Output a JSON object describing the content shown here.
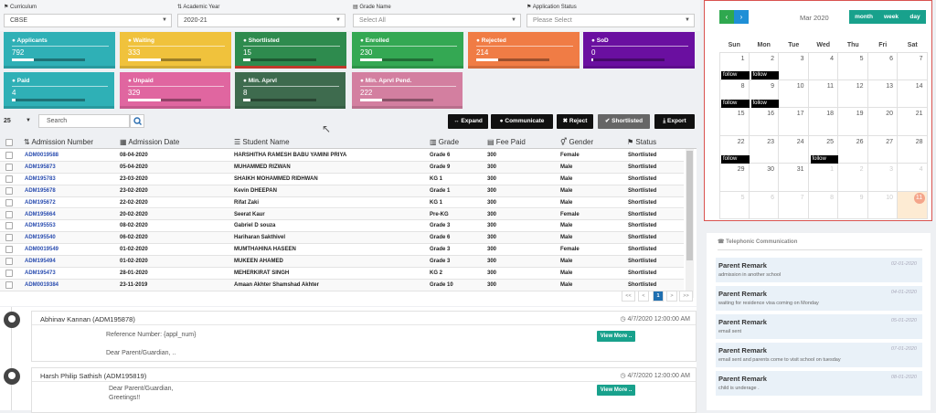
{
  "filters": [
    {
      "label": "Curriculum",
      "value": "CBSE",
      "placeholder": false
    },
    {
      "label": "Academic Year",
      "value": "2020-21",
      "placeholder": false
    },
    {
      "label": "Grade Name",
      "value": "Select All",
      "placeholder": true
    },
    {
      "label": "Application Status",
      "value": "Please Select",
      "placeholder": true
    }
  ],
  "tiles": [
    {
      "label": "Applicants",
      "value": "792",
      "color": "#2fb0b6",
      "progress": 0.3
    },
    {
      "label": "Waiting",
      "value": "333",
      "color": "#f0c23c",
      "progress": 0.45
    },
    {
      "label": "Shortlisted",
      "value": "15",
      "color": "#2e8b4e",
      "progress": 0.1
    },
    {
      "label": "Enrolled",
      "value": "230",
      "color": "#34a853",
      "progress": 0.3
    },
    {
      "label": "Rejected",
      "value": "214",
      "color": "#f07c45",
      "progress": 0.3
    },
    {
      "label": "SoD",
      "value": "0",
      "color": "#6a0fa0",
      "progress": 0.0
    },
    {
      "label": "Paid",
      "value": "4",
      "color": "#2fb0b6",
      "progress": 0.05
    },
    {
      "label": "Unpaid",
      "value": "329",
      "color": "#e066a0",
      "progress": 0.45
    },
    {
      "label": "Min. Aprvl",
      "value": "8",
      "color": "#3e6b4e",
      "progress": 0.1
    },
    {
      "label": "Min. Aprvl Pend.",
      "value": "222",
      "color": "#d37fa0",
      "progress": 0.3
    }
  ],
  "toolbar": {
    "page_size": "25",
    "search_placeholder": "Search",
    "expand": "Expand",
    "communicate": "Communicate",
    "reject": "Reject",
    "shortlisted": "Shortlisted",
    "export": "Export"
  },
  "table": {
    "headers": [
      "Admission Number",
      "Admission Date",
      "Student Name",
      "Grade",
      "Fee Paid",
      "Gender",
      "Status"
    ],
    "rows": [
      [
        "ADM0019588",
        "08-04-2020",
        "HARSHITHA RAMESH BABU YAMINI PRIYA",
        "Grade 6",
        "300",
        "Female",
        "Shortlisted"
      ],
      [
        "ADM195873",
        "05-04-2020",
        "MUHAMMED RIZWAN",
        "Grade 9",
        "300",
        "Male",
        "Shortlisted"
      ],
      [
        "ADM195783",
        "23-03-2020",
        "SHAIKH MOHAMMED RIDHWAN",
        "KG 1",
        "300",
        "Male",
        "Shortlisted"
      ],
      [
        "ADM195678",
        "23-02-2020",
        "Kevin DHEEPAN",
        "Grade 1",
        "300",
        "Male",
        "Shortlisted"
      ],
      [
        "ADM195672",
        "22-02-2020",
        "Rifat Zaki",
        "KG 1",
        "300",
        "Male",
        "Shortlisted"
      ],
      [
        "ADM195664",
        "20-02-2020",
        "Seerat Kaur",
        "Pre-KG",
        "300",
        "Female",
        "Shortlisted"
      ],
      [
        "ADM195553",
        "08-02-2020",
        "Gabriel D souza",
        "Grade 3",
        "300",
        "Male",
        "Shortlisted"
      ],
      [
        "ADM195540",
        "06-02-2020",
        "Hariharan Sakthivel",
        "Grade 6",
        "300",
        "Male",
        "Shortlisted"
      ],
      [
        "ADM0019549",
        "01-02-2020",
        "MUMTHAHINA HASEEN",
        "Grade 3",
        "300",
        "Female",
        "Shortlisted"
      ],
      [
        "ADM195494",
        "01-02-2020",
        "MUKEEN AHAMED",
        "Grade 3",
        "300",
        "Male",
        "Shortlisted"
      ],
      [
        "ADM195473",
        "28-01-2020",
        "MEHERKIRAT SINGH",
        "KG 2",
        "300",
        "Male",
        "Shortlisted"
      ],
      [
        "ADM0019384",
        "23-11-2019",
        "Amaan Akhter Shamshad Akhter",
        "Grade 10",
        "300",
        "Male",
        "Shortlisted"
      ]
    ],
    "pagination": [
      "<<",
      "<",
      "1",
      ">",
      ">>"
    ]
  },
  "calendar": {
    "title": "Mar 2020",
    "views": [
      "month",
      "week",
      "day"
    ],
    "weekdays": [
      "Sun",
      "Mon",
      "Tue",
      "Wed",
      "Thu",
      "Fri",
      "Sat"
    ],
    "weeks": [
      [
        "1",
        "2",
        "3",
        "4",
        "5",
        "6",
        "7"
      ],
      [
        "8",
        "9",
        "10",
        "11",
        "12",
        "13",
        "14"
      ],
      [
        "15",
        "16",
        "17",
        "18",
        "19",
        "20",
        "21"
      ],
      [
        "22",
        "23",
        "24",
        "25",
        "26",
        "27",
        "28"
      ],
      [
        "29",
        "30",
        "31",
        "1",
        "2",
        "3",
        "4"
      ],
      [
        "5",
        "6",
        "7",
        "8",
        "9",
        "10",
        "11"
      ]
    ],
    "event_label": "follow"
  },
  "telephonic": {
    "title": "Telephonic Communication",
    "remarks": [
      {
        "title": "Parent Remark",
        "date": "02-01-2020",
        "text": "admission in another school"
      },
      {
        "title": "Parent Remark",
        "date": "04-01-2020",
        "text": "waiting for residence visa coming on Monday"
      },
      {
        "title": "Parent Remark",
        "date": "05-01-2020",
        "text": "email sent"
      },
      {
        "title": "Parent Remark",
        "date": "07-01-2020",
        "text": "email sent and parents come to visit school on tuesday"
      },
      {
        "title": "Parent Remark",
        "date": "08-01-2020",
        "text": "child is underage ."
      }
    ]
  },
  "timeline": [
    {
      "name": "Abhinav Kannan (ADM195878)",
      "time": "4/7/2020 12:00:00 AM",
      "lines": [
        "Reference Number: {appl_num}",
        "Dear Parent/Guardian, .."
      ],
      "button": "View More .."
    },
    {
      "name": "Harsh Philip Sathish (ADM195819)",
      "time": "4/7/2020 12:00:00 AM",
      "lines": [
        "Dear Parent/Guardian,",
        "Greetings!!"
      ],
      "button": "View More .."
    }
  ]
}
